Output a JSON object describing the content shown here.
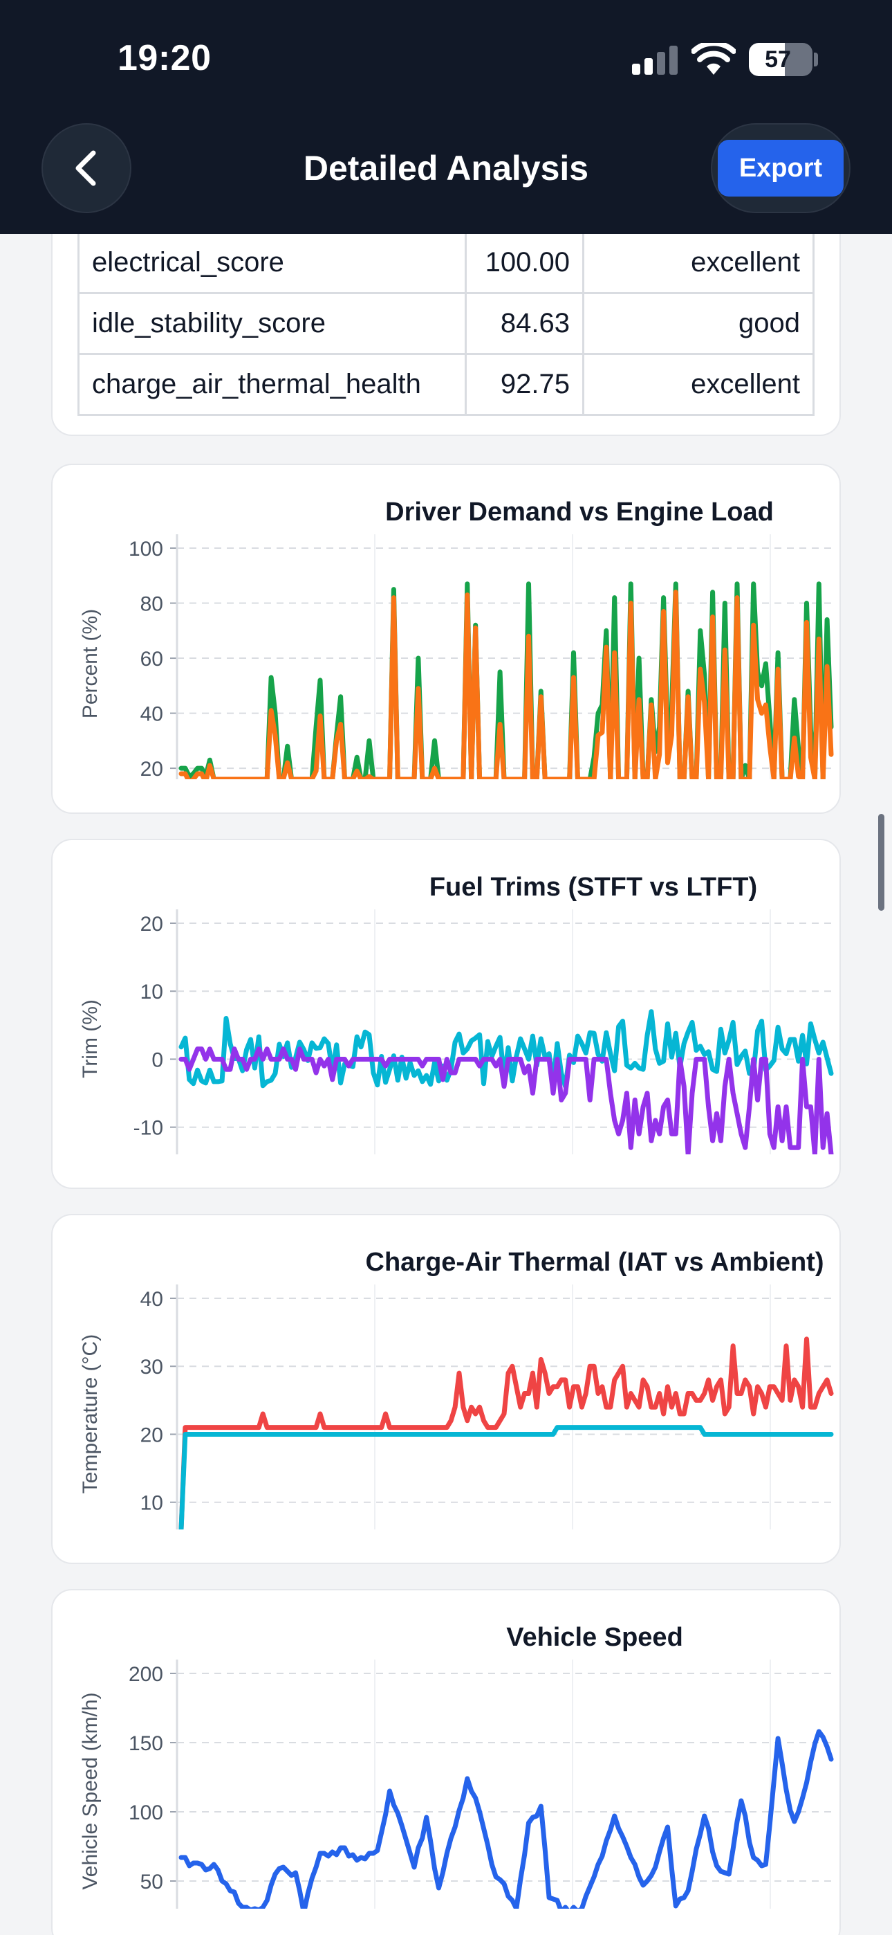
{
  "status_bar": {
    "time": "19:20",
    "battery_level": "57",
    "battery_fraction": 0.57
  },
  "header": {
    "title": "Detailed Analysis",
    "export_label": "Export",
    "back_icon": "chevron-left-icon"
  },
  "scores": [
    {
      "metric": "electrical_score",
      "value": "100.00",
      "rating": "excellent"
    },
    {
      "metric": "idle_stability_score",
      "value": "84.63",
      "rating": "good"
    },
    {
      "metric": "charge_air_thermal_health",
      "value": "92.75",
      "rating": "excellent"
    }
  ],
  "colors": {
    "green": "#16a34a",
    "orange": "#f97316",
    "cyan": "#06b6d4",
    "purple": "#9333ea",
    "red": "#ef4444",
    "blue": "#2563eb",
    "navy": "#111827"
  },
  "chart_data": [
    {
      "type": "line",
      "title": "Driver Demand vs Engine Load",
      "ylabel": "Percent (%)",
      "ylim": [
        16,
        100
      ],
      "yticks": [
        20,
        40,
        60,
        80,
        100
      ],
      "x": [
        0,
        1,
        2,
        3,
        4,
        5,
        6,
        7,
        8,
        9,
        10,
        11,
        12,
        13,
        14,
        15,
        16,
        17,
        18,
        19,
        20,
        21,
        22,
        23,
        24,
        25,
        26,
        27,
        28,
        29,
        30,
        31,
        32,
        33,
        34,
        35,
        36,
        37,
        38,
        39,
        40,
        41,
        42,
        43,
        44,
        45,
        46,
        47,
        48,
        49,
        50,
        51,
        52,
        53,
        54,
        55,
        56,
        57,
        58,
        59,
        60,
        61,
        62,
        63,
        64,
        65,
        66,
        67,
        68,
        69,
        70,
        71,
        72,
        73,
        74,
        75,
        76,
        77,
        78,
        79,
        80,
        81,
        82,
        83,
        84,
        85,
        86,
        87,
        88,
        89,
        90,
        91,
        92,
        93,
        94,
        95,
        96,
        97,
        98,
        99,
        100,
        101,
        102,
        103,
        104,
        105,
        106,
        107,
        108,
        109,
        110,
        111,
        112,
        113,
        114,
        115,
        116,
        117,
        118,
        119,
        120,
        121,
        122,
        123,
        124,
        125,
        126,
        127,
        128,
        129,
        130,
        131,
        132,
        133,
        134,
        135,
        136,
        137,
        138,
        139,
        140,
        141,
        142,
        143,
        144,
        145,
        146,
        147,
        148,
        149,
        150,
        151,
        152,
        153,
        154,
        155,
        156,
        157,
        158,
        159
      ],
      "series": [
        {
          "color": "#16a34a",
          "values": [
            22,
            18,
            25,
            17,
            16,
            22,
            18,
            24,
            16,
            16,
            16,
            16,
            16,
            16,
            16,
            16,
            16,
            16,
            16,
            16,
            16,
            16,
            53,
            40,
            16,
            16,
            28,
            16,
            16,
            16,
            16,
            16,
            16,
            35,
            52,
            22,
            26,
            16,
            32,
            46,
            16,
            24,
            16,
            16,
            16,
            16,
            30,
            16,
            16,
            16,
            16,
            16,
            16,
            16,
            16,
            16,
            16,
            16,
            16,
            16,
            16,
            16,
            16,
            16,
            16,
            16,
            16,
            16,
            16,
            16,
            16,
            16,
            16,
            16,
            16,
            16,
            16,
            16,
            16,
            16,
            16,
            16,
            16,
            16,
            16,
            16,
            16,
            16,
            16,
            16,
            16,
            16,
            16,
            16,
            16,
            16,
            16,
            16,
            16,
            16,
            16,
            16,
            16,
            16,
            16,
            16,
            16,
            16,
            16,
            16,
            16,
            16,
            16,
            16,
            16,
            16,
            16,
            16,
            16,
            16,
            16,
            16,
            16,
            16,
            16,
            16,
            16,
            16,
            16,
            16,
            16,
            16,
            16,
            16,
            16,
            16,
            16,
            16,
            16,
            16,
            16,
            16,
            16,
            16,
            16,
            16,
            16,
            16,
            16,
            16,
            16,
            16,
            16,
            16,
            16,
            16,
            16,
            16,
            16,
            16
          ]
        },
        {
          "color": "#f97316",
          "values": [
            20,
            16,
            22,
            16,
            16,
            20,
            16,
            22,
            16,
            16,
            16,
            16,
            16,
            16,
            16,
            16,
            16,
            16,
            16,
            16,
            16,
            16,
            50,
            38,
            16,
            16,
            24,
            16,
            16,
            16,
            16,
            16,
            16,
            32,
            48,
            20,
            24,
            16,
            28,
            42,
            16,
            22,
            16,
            16,
            16,
            16,
            26,
            16,
            16,
            16,
            16,
            16,
            16,
            16,
            16,
            16,
            16,
            16,
            16,
            16,
            16,
            16,
            16,
            16,
            16,
            16,
            16,
            16,
            16,
            16,
            16,
            16,
            16,
            16,
            16,
            16,
            16,
            16,
            16,
            16,
            16,
            16,
            16,
            16,
            16,
            16,
            16,
            16,
            16,
            16,
            16,
            16,
            16,
            16,
            16,
            16,
            16,
            16,
            16,
            16,
            16,
            16,
            16,
            16,
            16,
            16,
            16,
            16,
            16,
            16,
            16,
            16,
            16,
            16,
            16,
            16,
            16,
            16,
            16,
            16,
            16,
            16,
            16,
            16,
            16,
            16,
            16,
            16,
            16,
            16,
            16,
            16,
            16,
            16,
            16,
            16,
            16,
            16,
            16,
            16,
            16,
            16,
            16,
            16,
            16,
            16,
            16,
            16,
            16,
            16,
            16,
            16,
            16,
            16,
            16,
            16,
            16,
            16,
            16,
            16
          ]
        }
      ]
    },
    {
      "type": "line",
      "title": "Fuel Trims (STFT vs LTFT)",
      "ylabel": "Trim (%)",
      "ylim": [
        -14,
        20
      ],
      "yticks": [
        -10,
        0,
        10,
        20
      ],
      "series": [
        {
          "color": "#06b6d4",
          "values": []
        },
        {
          "color": "#9333ea",
          "values": []
        }
      ]
    },
    {
      "type": "line",
      "title": "Charge-Air Thermal (IAT vs Ambient)",
      "ylabel": "Temperature (°C)",
      "ylim": [
        6,
        40
      ],
      "yticks": [
        10,
        20,
        30,
        40
      ],
      "series": [
        {
          "color": "#ef4444",
          "values": []
        },
        {
          "color": "#06b6d4",
          "values": []
        }
      ]
    },
    {
      "type": "line",
      "title": "Vehicle Speed",
      "ylabel": "Vehicle Speed (km/h)",
      "ylim": [
        30,
        200
      ],
      "yticks": [
        50,
        100,
        150,
        200
      ],
      "series": [
        {
          "color": "#2563eb",
          "values": []
        }
      ]
    }
  ]
}
